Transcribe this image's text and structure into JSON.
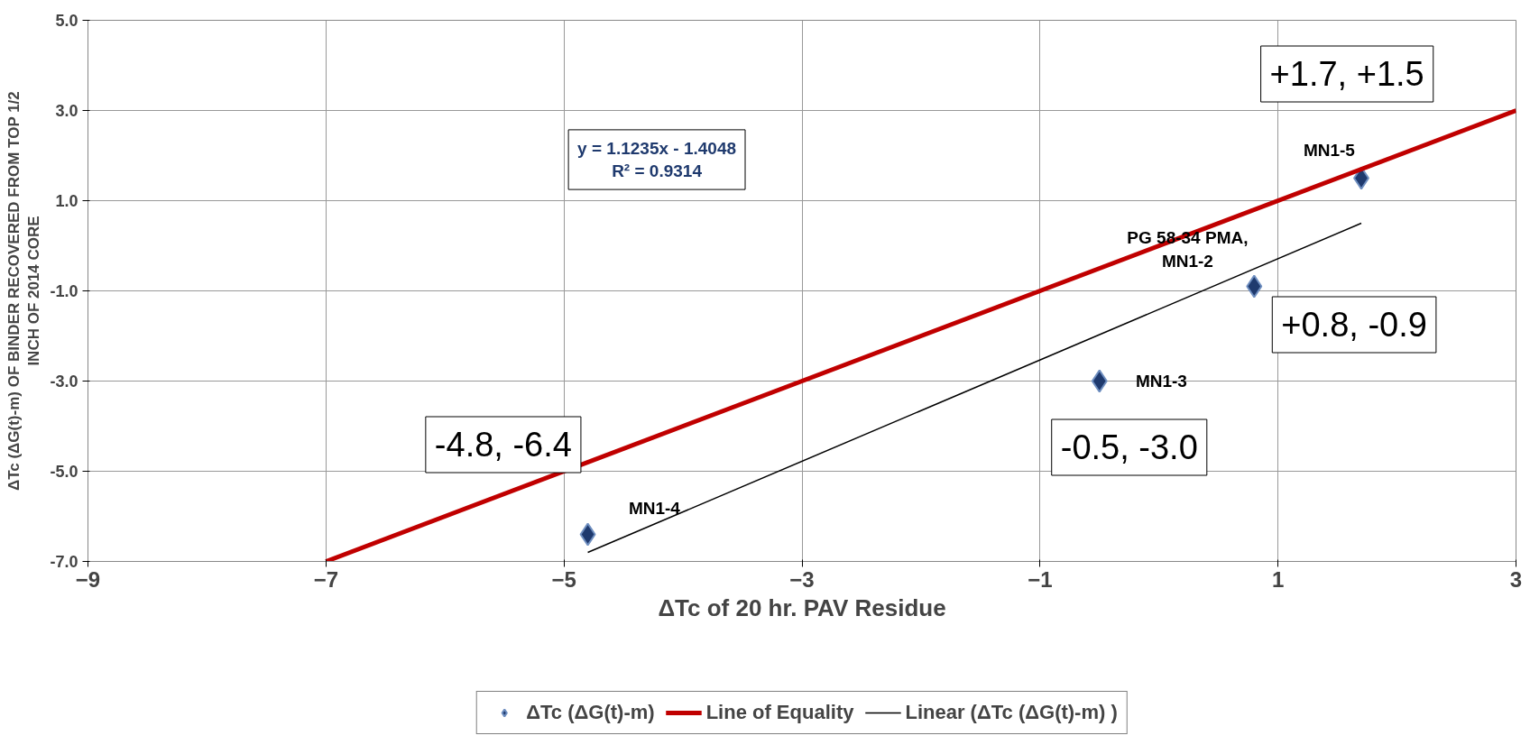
{
  "chart_data": {
    "type": "scatter",
    "xlabel": "ΔTc of 20 hr. PAV Residue",
    "ylabel": "ΔTc (ΔG(t)-m) OF BINDER RECOVERED FROM TOP 1/2\nINCH OF 2014 CORE",
    "series": [
      {
        "name": "ΔTc (ΔG(t)-m)",
        "color": "#1f3a6e",
        "marker": "diamond",
        "x": [
          -4.8,
          -0.5,
          0.8,
          1.7
        ],
        "values": [
          -6.4,
          -3.0,
          -0.9,
          1.5
        ]
      },
      {
        "name": "Line of Equality",
        "type": "line",
        "color": "#c00000",
        "x": [
          -7,
          3
        ],
        "values": [
          -7,
          3
        ]
      },
      {
        "name": "Linear (ΔTc (ΔG(t)-m) )",
        "type": "line",
        "color": "#000000",
        "x": [
          -4.8,
          1.7
        ],
        "values": [
          -6.8,
          0.5
        ]
      }
    ],
    "xlim": [
      -9,
      3
    ],
    "xticks": [
      -9,
      -7,
      -5,
      -3,
      -1,
      1,
      3
    ],
    "ylim": [
      -7,
      5
    ],
    "yticks": [
      {
        "value": -7,
        "label": "-7.0"
      },
      {
        "value": -5,
        "label": "-5.0"
      },
      {
        "value": -3,
        "label": "-3.0"
      },
      {
        "value": -1,
        "label": "-1.0"
      },
      {
        "value": 1,
        "label": "1.0"
      },
      {
        "value": 3,
        "label": "3.0"
      },
      {
        "value": 5,
        "label": "5.0"
      }
    ],
    "grid": true,
    "legend": "bottom",
    "annotations": [
      "y = 1.1235x - 1.4048\nR² = 0.9314",
      "+1.7, +1.5",
      "+0.8, -0.9",
      "-0.5, -3.0",
      "-4.8, -6.4",
      "MN1-5",
      "PG 58-34 PMA,\nMN1-2",
      "MN1-3",
      "MN1-4"
    ]
  }
}
